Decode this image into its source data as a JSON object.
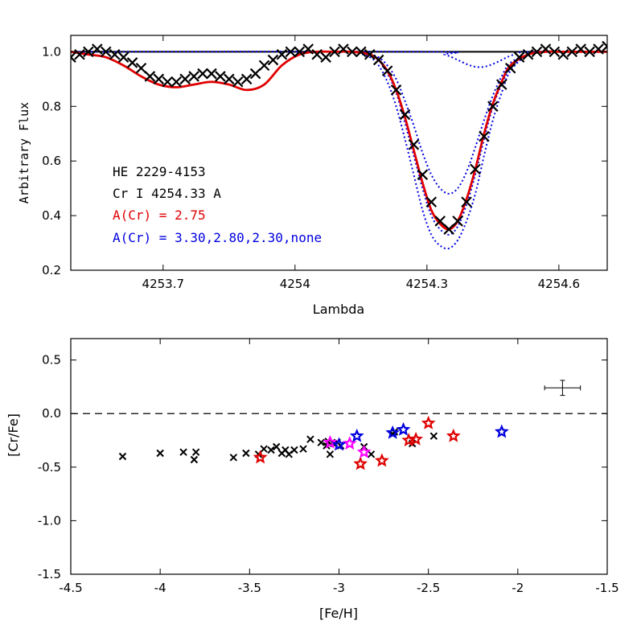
{
  "chart_data": [
    {
      "type": "line",
      "ylabel": "Arbitrary Flux",
      "xlabel": "Lambda",
      "xlim": [
        4253.49,
        4254.71
      ],
      "ylim": [
        0.2,
        1.06
      ],
      "x_ticks": [
        {
          "value": 4253.7,
          "label": "4253.7"
        },
        {
          "value": 4254.0,
          "label": "4254"
        },
        {
          "value": 4254.3,
          "label": "4254.3"
        },
        {
          "value": 4254.6,
          "label": "4254.6"
        }
      ],
      "y_ticks": [
        {
          "value": 0.2,
          "label": "0.2"
        },
        {
          "value": 0.4,
          "label": "0.4"
        },
        {
          "value": 0.6,
          "label": "0.6"
        },
        {
          "value": 0.8,
          "label": "0.8"
        },
        {
          "value": 1.0,
          "label": "1.0"
        }
      ],
      "continuum": 1.0,
      "annotations": [
        {
          "text": "HE 2229-4153",
          "color": "#000000"
        },
        {
          "text": "Cr I 4254.33 A",
          "color": "#000000"
        },
        {
          "text": "A(Cr) = 2.75",
          "color": "#e00000"
        },
        {
          "text": "A(Cr) = 3.30,2.80,2.30,none",
          "color": "#0000e0"
        }
      ],
      "series": [
        {
          "style": "cross",
          "color": "#000000",
          "x": [
            4253.49,
            4253.51,
            4253.53,
            4253.55,
            4253.57,
            4253.59,
            4253.61,
            4253.63,
            4253.65,
            4253.67,
            4253.69,
            4253.71,
            4253.73,
            4253.75,
            4253.77,
            4253.79,
            4253.81,
            4253.83,
            4253.85,
            4253.87,
            4253.89,
            4253.91,
            4253.93,
            4253.95,
            4253.97,
            4253.99,
            4254.01,
            4254.03,
            4254.05,
            4254.07,
            4254.09,
            4254.11,
            4254.13,
            4254.15,
            4254.17,
            4254.19,
            4254.21,
            4254.23,
            4254.25,
            4254.27,
            4254.29,
            4254.31,
            4254.33,
            4254.35,
            4254.37,
            4254.39,
            4254.41,
            4254.43,
            4254.45,
            4254.47,
            4254.49,
            4254.51,
            4254.53,
            4254.55,
            4254.57,
            4254.59,
            4254.61,
            4254.63,
            4254.65,
            4254.67,
            4254.69,
            4254.71
          ],
          "y": [
            0.98,
            0.99,
            1.0,
            1.01,
            1.0,
            0.99,
            0.98,
            0.96,
            0.94,
            0.91,
            0.9,
            0.89,
            0.89,
            0.9,
            0.91,
            0.92,
            0.92,
            0.91,
            0.9,
            0.89,
            0.9,
            0.92,
            0.95,
            0.97,
            0.99,
            1.0,
            1.0,
            1.01,
            0.99,
            0.98,
            1.0,
            1.01,
            1.0,
            1.0,
            0.99,
            0.97,
            0.93,
            0.86,
            0.77,
            0.66,
            0.55,
            0.45,
            0.38,
            0.35,
            0.38,
            0.45,
            0.57,
            0.69,
            0.8,
            0.88,
            0.94,
            0.98,
            0.99,
            1.0,
            1.01,
            1.0,
            0.99,
            1.0,
            1.01,
            1.0,
            1.01,
            1.02
          ]
        },
        {
          "style": "solid",
          "color": "#e00000",
          "abundance": 2.75,
          "x": [
            4253.49,
            4253.53,
            4253.57,
            4253.61,
            4253.65,
            4253.69,
            4253.73,
            4253.77,
            4253.81,
            4253.85,
            4253.89,
            4253.93,
            4253.97,
            4254.01,
            4254.05,
            4254.09,
            4254.13,
            4254.17,
            4254.19,
            4254.21,
            4254.23,
            4254.25,
            4254.27,
            4254.29,
            4254.31,
            4254.33,
            4254.35,
            4254.37,
            4254.39,
            4254.41,
            4254.43,
            4254.45,
            4254.47,
            4254.49,
            4254.53,
            4254.57,
            4254.61,
            4254.65,
            4254.71
          ],
          "y": [
            1.0,
            0.99,
            0.98,
            0.95,
            0.91,
            0.88,
            0.87,
            0.88,
            0.89,
            0.88,
            0.86,
            0.88,
            0.95,
            0.99,
            1.0,
            1.0,
            1.0,
            0.99,
            0.97,
            0.93,
            0.86,
            0.76,
            0.64,
            0.52,
            0.42,
            0.37,
            0.35,
            0.38,
            0.46,
            0.57,
            0.7,
            0.81,
            0.89,
            0.95,
            0.99,
            1.0,
            1.0,
            1.0,
            1.0
          ]
        },
        {
          "style": "dotted",
          "color": "#0000e0",
          "abundance": 3.3,
          "x": [
            4253.49,
            4253.53,
            4253.57,
            4253.61,
            4253.65,
            4253.69,
            4253.73,
            4253.77,
            4253.81,
            4253.85,
            4253.89,
            4253.93,
            4253.97,
            4254.01,
            4254.05,
            4254.09,
            4254.13,
            4254.17,
            4254.19,
            4254.21,
            4254.23,
            4254.25,
            4254.27,
            4254.29,
            4254.31,
            4254.33,
            4254.35,
            4254.37,
            4254.39,
            4254.41,
            4254.43,
            4254.45,
            4254.47,
            4254.49,
            4254.53,
            4254.57,
            4254.61,
            4254.65,
            4254.71
          ],
          "y": [
            1.0,
            0.99,
            0.98,
            0.95,
            0.91,
            0.88,
            0.87,
            0.88,
            0.89,
            0.88,
            0.86,
            0.88,
            0.95,
            0.99,
            1.0,
            1.0,
            1.0,
            0.98,
            0.95,
            0.89,
            0.8,
            0.68,
            0.55,
            0.42,
            0.33,
            0.29,
            0.28,
            0.31,
            0.38,
            0.48,
            0.62,
            0.75,
            0.85,
            0.93,
            0.99,
            1.0,
            1.0,
            1.0,
            1.0
          ]
        },
        {
          "style": "dotted",
          "color": "#0000e0",
          "abundance": 2.8,
          "x": [
            4253.49,
            4253.53,
            4253.57,
            4253.61,
            4253.65,
            4253.69,
            4253.73,
            4253.77,
            4253.81,
            4253.85,
            4253.89,
            4253.93,
            4253.97,
            4254.01,
            4254.05,
            4254.09,
            4254.13,
            4254.17,
            4254.19,
            4254.21,
            4254.23,
            4254.25,
            4254.27,
            4254.29,
            4254.31,
            4254.33,
            4254.35,
            4254.37,
            4254.39,
            4254.41,
            4254.43,
            4254.45,
            4254.47,
            4254.49,
            4254.53,
            4254.57,
            4254.61,
            4254.65,
            4254.71
          ],
          "y": [
            1.0,
            0.99,
            0.98,
            0.95,
            0.91,
            0.88,
            0.87,
            0.88,
            0.89,
            0.88,
            0.86,
            0.88,
            0.95,
            0.99,
            1.0,
            1.0,
            1.0,
            0.99,
            0.97,
            0.92,
            0.85,
            0.74,
            0.62,
            0.5,
            0.4,
            0.35,
            0.33,
            0.36,
            0.44,
            0.55,
            0.68,
            0.8,
            0.88,
            0.94,
            0.99,
            1.0,
            1.0,
            1.0,
            1.0
          ]
        },
        {
          "style": "dotted",
          "color": "#0000e0",
          "abundance": 2.3,
          "x": [
            4253.49,
            4253.53,
            4253.57,
            4253.61,
            4253.65,
            4253.69,
            4253.73,
            4253.77,
            4253.81,
            4253.85,
            4253.89,
            4253.93,
            4253.97,
            4254.01,
            4254.05,
            4254.09,
            4254.13,
            4254.17,
            4254.19,
            4254.21,
            4254.23,
            4254.25,
            4254.27,
            4254.29,
            4254.31,
            4254.33,
            4254.35,
            4254.37,
            4254.39,
            4254.41,
            4254.43,
            4254.45,
            4254.47,
            4254.49,
            4254.53,
            4254.57,
            4254.61,
            4254.65,
            4254.71
          ],
          "y": [
            1.0,
            0.99,
            0.98,
            0.95,
            0.91,
            0.88,
            0.87,
            0.88,
            0.89,
            0.88,
            0.86,
            0.88,
            0.95,
            0.99,
            1.0,
            1.0,
            1.0,
            0.99,
            0.98,
            0.95,
            0.9,
            0.82,
            0.73,
            0.63,
            0.55,
            0.5,
            0.48,
            0.5,
            0.56,
            0.65,
            0.75,
            0.84,
            0.91,
            0.96,
            0.99,
            1.0,
            1.0,
            1.0,
            1.0
          ]
        },
        {
          "style": "dotted",
          "color": "#0000e0",
          "abundance": "none",
          "x": [
            4253.49,
            4254.3,
            4254.34,
            4254.37,
            4254.39,
            4254.41,
            4254.43,
            4254.45,
            4254.47,
            4254.49,
            4254.53,
            4254.71
          ],
          "y": [
            1.0,
            1.0,
            0.99,
            0.97,
            0.955,
            0.945,
            0.945,
            0.955,
            0.97,
            0.985,
            1.0,
            1.0
          ]
        }
      ]
    },
    {
      "type": "scatter",
      "xlabel": "[Fe/H]",
      "ylabel": "[Cr/Fe]",
      "xlim": [
        -4.5,
        -1.5
      ],
      "ylim": [
        -1.5,
        0.7
      ],
      "x_ticks": [
        {
          "value": -4.5,
          "label": "-4.5"
        },
        {
          "value": -4.0,
          "label": "-4"
        },
        {
          "value": -3.5,
          "label": "-3.5"
        },
        {
          "value": -3.0,
          "label": "-3"
        },
        {
          "value": -2.5,
          "label": "-2.5"
        },
        {
          "value": -2.0,
          "label": "-2"
        },
        {
          "value": -1.5,
          "label": "-1.5"
        }
      ],
      "y_ticks": [
        {
          "value": -1.5,
          "label": "-1.5"
        },
        {
          "value": -1.0,
          "label": "-1.0"
        },
        {
          "value": -0.5,
          "label": "-0.5"
        },
        {
          "value": 0.0,
          "label": "0.0"
        },
        {
          "value": 0.5,
          "label": "0.5"
        }
      ],
      "reference_line": 0.0,
      "error_bar": {
        "x": -1.75,
        "y": 0.24,
        "xerr": 0.1,
        "yerr": 0.07
      },
      "series": [
        {
          "style": "cross",
          "color": "#000000",
          "x": [
            -4.21,
            -4.0,
            -3.87,
            -3.8,
            -3.81,
            -3.59,
            -3.52,
            -3.45,
            -3.42,
            -3.38,
            -3.35,
            -3.32,
            -3.3,
            -3.28,
            -3.25,
            -3.2,
            -3.16,
            -3.1,
            -3.07,
            -3.06,
            -3.05,
            -3.03,
            -3.01,
            -2.99,
            -2.86,
            -2.82,
            -2.7,
            -2.69,
            -2.59,
            -2.47
          ],
          "y": [
            -0.4,
            -0.37,
            -0.36,
            -0.36,
            -0.43,
            -0.41,
            -0.37,
            -0.38,
            -0.33,
            -0.34,
            -0.31,
            -0.37,
            -0.34,
            -0.38,
            -0.34,
            -0.33,
            -0.24,
            -0.27,
            -0.3,
            -0.26,
            -0.38,
            -0.28,
            -0.27,
            -0.3,
            -0.31,
            -0.38,
            -0.19,
            -0.17,
            -0.28,
            -0.21
          ]
        },
        {
          "style": "star",
          "color": "#e00000",
          "x": [
            -3.44,
            -2.88,
            -2.76,
            -2.61,
            -2.57,
            -2.5,
            -2.36
          ],
          "y": [
            -0.41,
            -0.47,
            -0.44,
            -0.25,
            -0.24,
            -0.09,
            -0.21
          ]
        },
        {
          "style": "star",
          "color": "#ff00ff",
          "x": [
            -3.05,
            -2.94,
            -2.86
          ],
          "y": [
            -0.27,
            -0.28,
            -0.36
          ]
        },
        {
          "style": "star",
          "color": "#0000e0",
          "x": [
            -3.0,
            -2.9,
            -2.7,
            -2.64,
            -2.09
          ],
          "y": [
            -0.29,
            -0.21,
            -0.18,
            -0.15,
            -0.17
          ]
        }
      ]
    }
  ]
}
